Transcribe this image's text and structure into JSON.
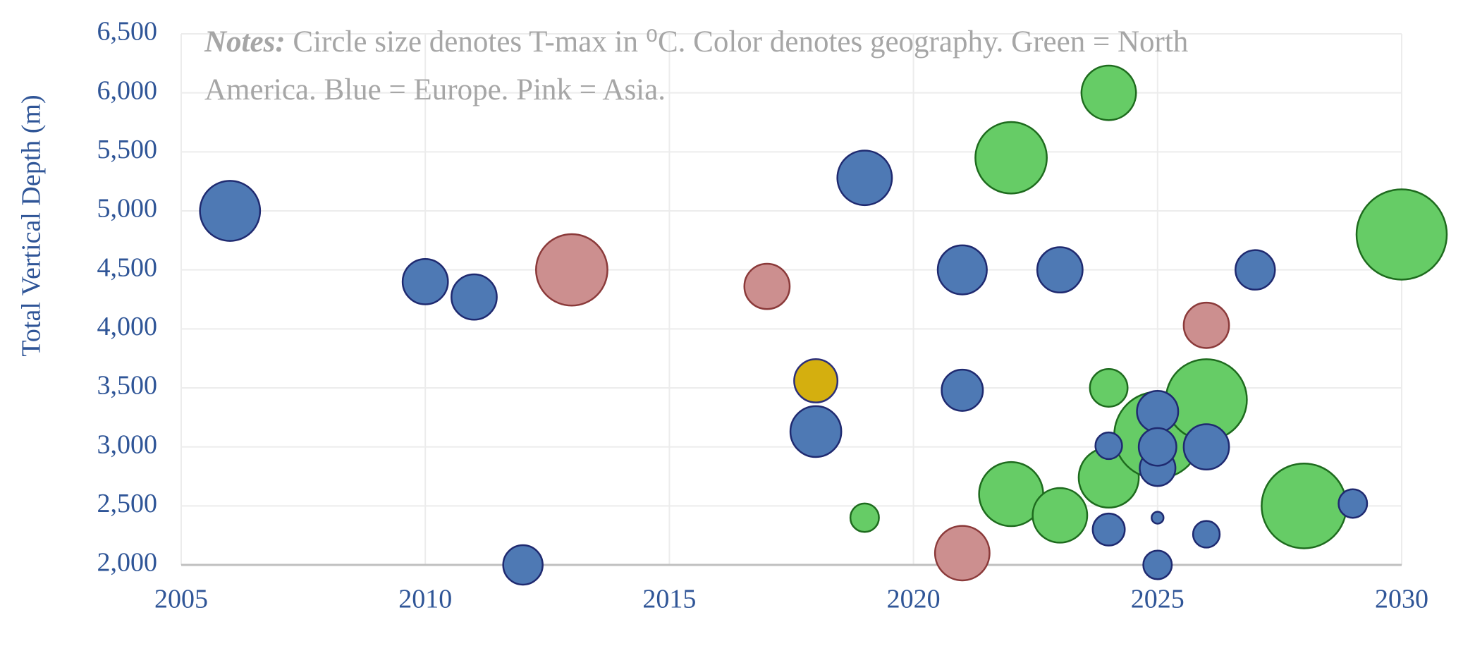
{
  "chart_data": {
    "type": "bubble",
    "y_label": "Total Vertical Depth (m)",
    "notes_label": "Notes:",
    "notes": "Circle size denotes T-max in ⁰C. Color denotes geography. Green = North America. Blue = Europe. Pink = Asia.",
    "xlim": [
      2005,
      2030
    ],
    "xticks": [
      2005,
      2010,
      2015,
      2020,
      2025,
      2030
    ],
    "ylim": [
      2000,
      6500
    ],
    "yticks": [
      {
        "value": 2000,
        "label": "2,000"
      },
      {
        "value": 2500,
        "label": "2,500"
      },
      {
        "value": 3000,
        "label": "3,000"
      },
      {
        "value": 3500,
        "label": "3,500"
      },
      {
        "value": 4000,
        "label": "4,000"
      },
      {
        "value": 4500,
        "label": "4,500"
      },
      {
        "value": 5000,
        "label": "5,000"
      },
      {
        "value": 5500,
        "label": "5,500"
      },
      {
        "value": 6000,
        "label": "6,000"
      },
      {
        "value": 6500,
        "label": "6,500"
      }
    ],
    "grid": true,
    "series": [
      {
        "color": "#66cc66",
        "edge": "#1e6b1e",
        "x": [
          2019,
          2022,
          2022,
          2023,
          2024,
          2024,
          2024,
          2025,
          2026,
          2028,
          2030
        ],
        "y": [
          2400,
          5450,
          2600,
          2420,
          6000,
          3500,
          2740,
          3100,
          3400,
          2500,
          4800
        ],
        "sizes": [
          23,
          144,
          116,
          84,
          84,
          40,
          102,
          212,
          185,
          203,
          230
        ]
      },
      {
        "color": "#cc8f8f",
        "edge": "#8b3a3a",
        "x": [
          2013,
          2017,
          2021,
          2026
        ],
        "y": [
          4500,
          4360,
          2100,
          4030
        ],
        "sizes": [
          144,
          58,
          84,
          58
        ]
      },
      {
        "color": "#d4af0f",
        "edge": "#2b2f7a",
        "x": [
          2018
        ],
        "y": [
          3560
        ],
        "sizes": [
          53
        ]
      },
      {
        "color": "#4e79b4",
        "edge": "#1f2a70",
        "x": [
          2006,
          2010,
          2011,
          2012,
          2018,
          2019,
          2021,
          2021,
          2023,
          2024,
          2024,
          2025,
          2025,
          2025,
          2025,
          2025,
          2026,
          2026,
          2027,
          2029
        ],
        "y": [
          5000,
          4400,
          4270,
          2000,
          3130,
          5280,
          4500,
          3480,
          4500,
          3010,
          2300,
          3300,
          2820,
          3000,
          2400,
          2000,
          3000,
          2260,
          4500,
          2520
        ],
        "sizes": [
          102,
          58,
          58,
          44,
          73,
          84,
          68,
          48,
          58,
          20,
          29,
          48,
          36,
          40,
          4,
          23,
          58,
          20,
          44,
          23
        ]
      }
    ]
  }
}
